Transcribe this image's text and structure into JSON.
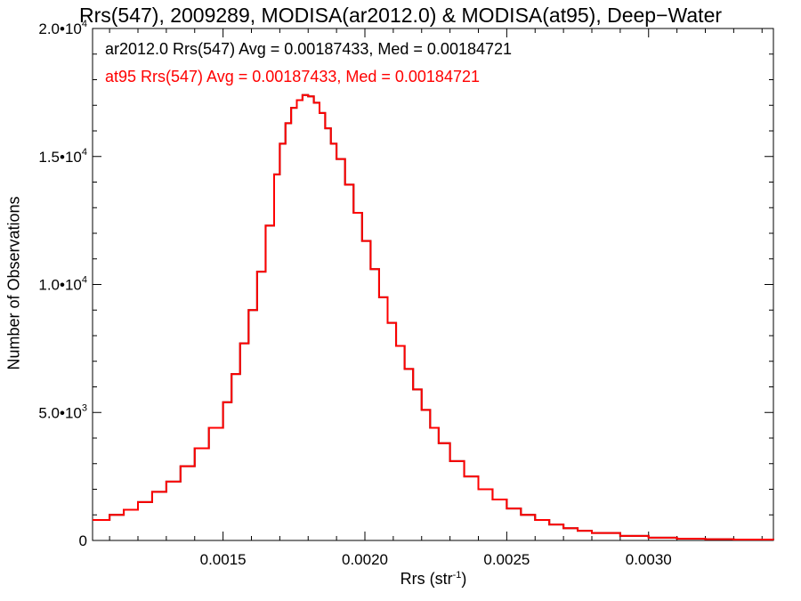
{
  "chart_data": {
    "type": "line",
    "title": "Rrs(547), 2009289, MODISA(ar2012.0) & MODISA(at95), Deep−Water",
    "xlabel": "Rrs (str",
    "xlabel_sup": "-1",
    "xlabel_close": ")",
    "ylabel": "Number of Observations",
    "xlim": [
      0.00104,
      0.00344
    ],
    "ylim": [
      0,
      20000
    ],
    "xticks": [
      0.0015,
      0.002,
      0.0025,
      0.003
    ],
    "xtick_labels": [
      "0.0015",
      "0.0020",
      "0.0025",
      "0.0030"
    ],
    "yticks": [
      0,
      5000,
      10000,
      15000,
      20000
    ],
    "ytick_labels": [
      {
        "mantissa": "0",
        "exp": ""
      },
      {
        "mantissa": "5.0•10",
        "exp": "3"
      },
      {
        "mantissa": "1.0•10",
        "exp": "4"
      },
      {
        "mantissa": "1.5•10",
        "exp": "4"
      },
      {
        "mantissa": "2.0•10",
        "exp": "4"
      }
    ],
    "grid": false,
    "annotations": [
      {
        "text": "ar2012.0 Rrs(547) Avg = 0.00187433, Med = 0.00184721",
        "color": "#000000"
      },
      {
        "text": "at95 Rrs(547) Avg = 0.00187433, Med = 0.00184721",
        "color": "#ff0000"
      }
    ],
    "series": [
      {
        "name": "ar2012.0",
        "color": "#000000",
        "x": [
          0.00104,
          0.0011,
          0.00115,
          0.0012,
          0.00125,
          0.0013,
          0.00135,
          0.0014,
          0.00145,
          0.0015,
          0.00153,
          0.00156,
          0.00159,
          0.00162,
          0.00165,
          0.00168,
          0.0017,
          0.00172,
          0.00174,
          0.00176,
          0.00178,
          0.0018,
          0.00182,
          0.00184,
          0.00186,
          0.00188,
          0.0019,
          0.00193,
          0.00196,
          0.00199,
          0.00202,
          0.00205,
          0.00208,
          0.00211,
          0.00214,
          0.00217,
          0.0022,
          0.00223,
          0.00226,
          0.0023,
          0.00235,
          0.0024,
          0.00245,
          0.0025,
          0.00255,
          0.0026,
          0.00265,
          0.0027,
          0.00275,
          0.0028,
          0.0029,
          0.003,
          0.0031,
          0.0032,
          0.0033,
          0.00344
        ],
        "y": [
          800,
          1000,
          1200,
          1500,
          1900,
          2300,
          2900,
          3600,
          4400,
          5400,
          6500,
          7700,
          9000,
          10500,
          12300,
          14300,
          15500,
          16300,
          16900,
          17200,
          17400,
          17350,
          17100,
          16700,
          16100,
          15500,
          14900,
          13900,
          12800,
          11700,
          10600,
          9500,
          8500,
          7600,
          6700,
          5900,
          5100,
          4400,
          3800,
          3100,
          2500,
          2000,
          1600,
          1250,
          1000,
          800,
          620,
          480,
          380,
          290,
          180,
          110,
          70,
          50,
          35,
          20
        ]
      },
      {
        "name": "at95",
        "color": "#ff0000",
        "x": [
          0.00104,
          0.0011,
          0.00115,
          0.0012,
          0.00125,
          0.0013,
          0.00135,
          0.0014,
          0.00145,
          0.0015,
          0.00153,
          0.00156,
          0.00159,
          0.00162,
          0.00165,
          0.00168,
          0.0017,
          0.00172,
          0.00174,
          0.00176,
          0.00178,
          0.0018,
          0.00182,
          0.00184,
          0.00186,
          0.00188,
          0.0019,
          0.00193,
          0.00196,
          0.00199,
          0.00202,
          0.00205,
          0.00208,
          0.00211,
          0.00214,
          0.00217,
          0.0022,
          0.00223,
          0.00226,
          0.0023,
          0.00235,
          0.0024,
          0.00245,
          0.0025,
          0.00255,
          0.0026,
          0.00265,
          0.0027,
          0.00275,
          0.0028,
          0.0029,
          0.003,
          0.0031,
          0.0032,
          0.0033,
          0.00344
        ],
        "y": [
          800,
          1000,
          1200,
          1500,
          1900,
          2300,
          2900,
          3600,
          4400,
          5400,
          6500,
          7700,
          9000,
          10500,
          12300,
          14300,
          15500,
          16300,
          16900,
          17200,
          17400,
          17350,
          17100,
          16700,
          16100,
          15500,
          14900,
          13900,
          12800,
          11700,
          10600,
          9500,
          8500,
          7600,
          6700,
          5900,
          5100,
          4400,
          3800,
          3100,
          2500,
          2000,
          1600,
          1250,
          1000,
          800,
          620,
          480,
          380,
          290,
          180,
          110,
          70,
          50,
          35,
          20
        ]
      }
    ]
  }
}
